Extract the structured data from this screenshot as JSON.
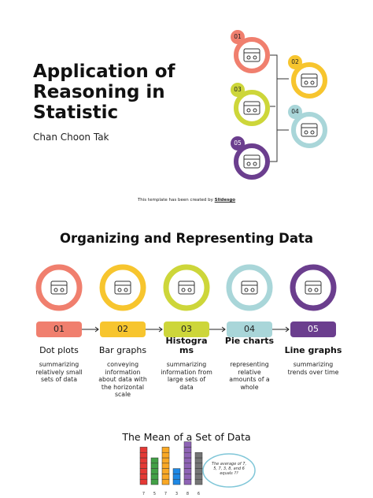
{
  "cover": {
    "title": "Application of Reasoning in Statistic",
    "author": "Chan Choon Tak",
    "credit": "This template has been created by",
    "credit_link": "Slidesgo",
    "steps": [
      "01",
      "02",
      "03",
      "04",
      "05"
    ]
  },
  "organizing": {
    "title": "Organizing and Representing Data",
    "items": [
      {
        "number": "01",
        "name": "Dot plots",
        "description": "summarizing relatively small sets of data"
      },
      {
        "number": "02",
        "name": "Bar graphs",
        "description": "conveying information about data with the horizontal scale"
      },
      {
        "number": "03",
        "name": "Histograms",
        "description": "summarizing information from large sets of data"
      },
      {
        "number": "04",
        "name": "Pie charts",
        "description": "representing relative amounts of a whole"
      },
      {
        "number": "05",
        "name": "Line graphs",
        "description": "summarizing trends over time"
      }
    ]
  },
  "mean": {
    "title": "The Mean of a Set of Data",
    "values": [
      7,
      5,
      7,
      3,
      8,
      6
    ],
    "note": "The average of 7, 5, 7, 3, 8, and 6 equals ??"
  }
}
